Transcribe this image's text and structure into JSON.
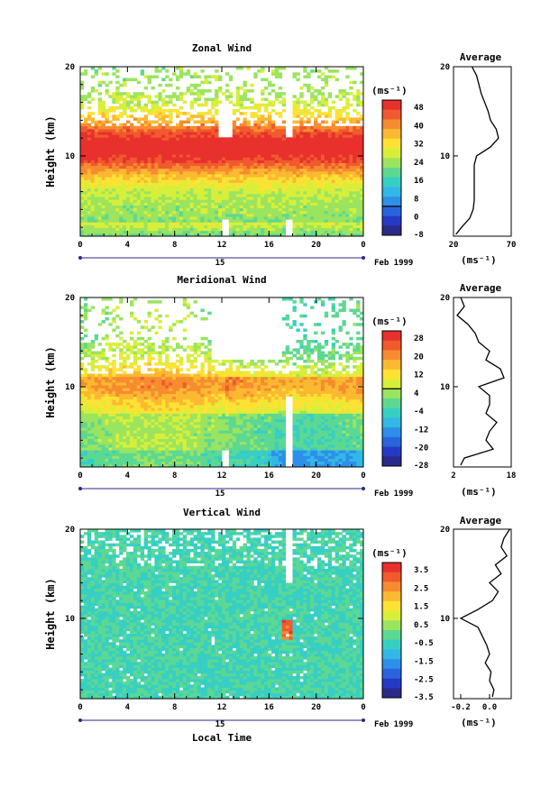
{
  "date_label": "Feb 1999",
  "xlabel": "Local Time",
  "day_label": "15",
  "chart_data": [
    {
      "type": "heatmap",
      "title": "Zonal Wind",
      "ylabel": "Height (km)",
      "unit": "(ms⁻¹)",
      "x_ticks": [
        "0",
        "4",
        "8",
        "12",
        "16",
        "20",
        "0"
      ],
      "y_ticks": [
        "10",
        "20"
      ],
      "ylim": [
        1,
        20
      ],
      "colorbar": {
        "labels": [
          "48",
          "40",
          "32",
          "24",
          "16",
          "8",
          "0",
          "-8"
        ],
        "colors": [
          "#e8302c",
          "#f05a2e",
          "#f68c2f",
          "#fbb931",
          "#fde234",
          "#d8ef3a",
          "#9be45f",
          "#5dd892",
          "#37cfc4",
          "#32b8e6",
          "#2e8fe8",
          "#2a64dd",
          "#2639c4",
          "#2a2a8a"
        ],
        "contour_index": 11
      },
      "palette_range": [
        -8,
        52
      ],
      "profile": {
        "title": "Average",
        "x_ticks": [
          "20",
          "70"
        ],
        "xlim": [
          20,
          70
        ],
        "y_ticks": [
          "10",
          "20"
        ],
        "unit": "(ms⁻¹)",
        "heights": [
          1.2,
          2,
          3,
          4,
          5,
          6,
          7,
          8,
          9,
          10,
          11,
          12,
          13,
          14,
          15,
          16,
          17,
          18,
          19,
          20
        ],
        "values": [
          22,
          27,
          34,
          37,
          38,
          38,
          38,
          38,
          38,
          40,
          52,
          59,
          57,
          52,
          50,
          47,
          44,
          42,
          40,
          36
        ]
      }
    },
    {
      "type": "heatmap",
      "title": "Meridional Wind",
      "ylabel": "Height (km)",
      "unit": "(ms⁻¹)",
      "x_ticks": [
        "0",
        "4",
        "8",
        "12",
        "16",
        "20",
        "0"
      ],
      "y_ticks": [
        "10",
        "20"
      ],
      "ylim": [
        1,
        20
      ],
      "colorbar": {
        "labels": [
          "28",
          "20",
          "12",
          "4",
          "-4",
          "-12",
          "-20",
          "-28"
        ],
        "colors": [
          "#e8302c",
          "#f05a2e",
          "#f68c2f",
          "#fbb931",
          "#fde234",
          "#d8ef3a",
          "#9be45f",
          "#5dd892",
          "#37cfc4",
          "#32b8e6",
          "#2e8fe8",
          "#2a64dd",
          "#2639c4",
          "#2a2a8a"
        ],
        "contour_index": 6
      },
      "palette_range": [
        -28,
        32
      ],
      "profile": {
        "title": "Average",
        "x_ticks": [
          "2",
          "18"
        ],
        "xlim": [
          2,
          18
        ],
        "y_ticks": [
          "10",
          "20"
        ],
        "unit": "(ms⁻¹)",
        "heights": [
          1.2,
          2,
          3,
          4,
          5,
          6,
          7,
          8,
          9,
          10,
          11,
          12,
          13,
          14,
          15,
          16,
          17,
          18,
          19,
          20
        ],
        "values": [
          4,
          5,
          13,
          11,
          12,
          14,
          11,
          12,
          12,
          9,
          16,
          15,
          11,
          12,
          9,
          8,
          6,
          3,
          5,
          4
        ]
      }
    },
    {
      "type": "heatmap",
      "title": "Vertical Wind",
      "ylabel": "Height (km)",
      "unit": "(ms⁻¹)",
      "x_ticks": [
        "0",
        "4",
        "8",
        "12",
        "16",
        "20",
        "0"
      ],
      "y_ticks": [
        "10",
        "20"
      ],
      "ylim": [
        1,
        20
      ],
      "colorbar": {
        "labels": [
          "3.5",
          "2.5",
          "1.5",
          "0.5",
          "-0.5",
          "-1.5",
          "-2.5",
          "-3.5"
        ],
        "colors": [
          "#e8302c",
          "#f05a2e",
          "#f68c2f",
          "#fbb931",
          "#fde234",
          "#d8ef3a",
          "#9be45f",
          "#5dd892",
          "#37cfc4",
          "#32b8e6",
          "#2e8fe8",
          "#2a64dd",
          "#2639c4",
          "#2a2a8a"
        ],
        "contour_index": -1
      },
      "palette_range": [
        -4,
        4
      ],
      "profile": {
        "title": "Average",
        "x_ticks": [
          "-0.2",
          "0.0"
        ],
        "xlim": [
          -0.25,
          0.15
        ],
        "y_ticks": [
          "10",
          "20"
        ],
        "unit": "(ms⁻¹)",
        "heights": [
          1.2,
          2,
          3,
          4,
          5,
          6,
          7,
          8,
          9,
          10,
          11,
          12,
          13,
          14,
          15,
          16,
          17,
          18,
          19,
          20
        ],
        "values": [
          0.02,
          0.03,
          0.0,
          0.01,
          -0.03,
          0.0,
          -0.02,
          -0.05,
          -0.08,
          -0.2,
          -0.08,
          0.02,
          0.06,
          0.0,
          0.08,
          0.04,
          0.12,
          0.08,
          0.1,
          0.14
        ]
      }
    }
  ]
}
